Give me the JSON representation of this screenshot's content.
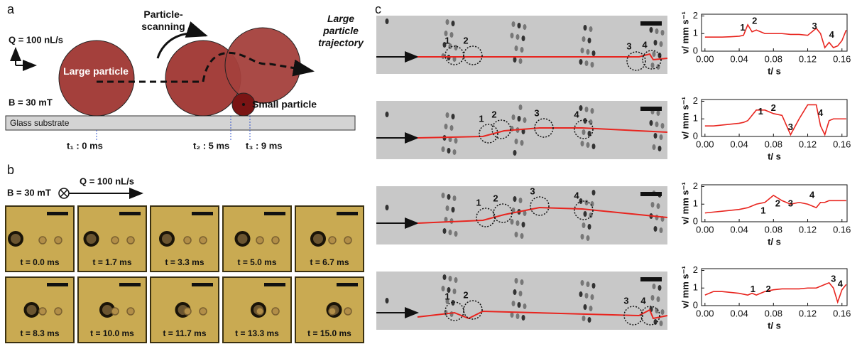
{
  "panel_a": {
    "label": "a",
    "flow": "Q = 100 nL/s",
    "field": "B = 30 mT",
    "large_particle": "Large particle",
    "scanning": "Particle-scanning",
    "trajectory": "Large particle trajectory",
    "small_particle": "Small particle",
    "substrate": "Glass substrate",
    "times": [
      "t₁ : 0 ms",
      "t₂ : 5 ms",
      "t₃ : 9 ms"
    ]
  },
  "panel_b": {
    "label": "b",
    "field": "B = 30 mT",
    "flow": "Q = 100 nL/s",
    "frames": [
      "t = 0.0 ms",
      "t = 1.7 ms",
      "t = 3.3 ms",
      "t = 5.0 ms",
      "t = 6.7 ms",
      "t = 8.3 ms",
      "t = 10.0 ms",
      "t = 11.7 ms",
      "t = 13.3 ms",
      "t = 15.0 ms"
    ]
  },
  "panel_c": {
    "label": "c",
    "images": [
      [
        "1",
        "2",
        "3",
        "4"
      ],
      [
        "1",
        "2",
        "3",
        "4"
      ],
      [
        "1",
        "2",
        "3",
        "4"
      ],
      [
        "1",
        "2",
        "3",
        "4"
      ]
    ]
  },
  "chart_data": [
    {
      "type": "line",
      "xlabel": "t/ s",
      "ylabel": "v/ mm s⁻¹",
      "xlim": [
        -0.004,
        0.166
      ],
      "ylim": [
        0,
        2.1
      ],
      "yticks": [
        0,
        1,
        2
      ],
      "xticks": [
        {
          "value": 0,
          "label": "0.00"
        },
        {
          "value": 0.04,
          "label": "0.04"
        },
        {
          "value": 0.08,
          "label": "0.08"
        },
        {
          "value": 0.12,
          "label": "0.12"
        },
        {
          "value": 0.16,
          "label": "0.16"
        }
      ],
      "x": [
        0,
        0.01,
        0.02,
        0.03,
        0.04,
        0.045,
        0.05,
        0.055,
        0.06,
        0.07,
        0.08,
        0.09,
        0.1,
        0.11,
        0.12,
        0.13,
        0.135,
        0.14,
        0.145,
        0.15,
        0.155,
        0.16,
        0.165
      ],
      "series": [
        {
          "color": "#e8251f",
          "values": [
            0.8,
            0.8,
            0.8,
            0.82,
            0.85,
            0.9,
            1.5,
            1.1,
            1.2,
            1.0,
            1.0,
            1.0,
            0.95,
            0.95,
            0.9,
            1.3,
            1.0,
            0.2,
            0.5,
            0.2,
            0.3,
            0.6,
            1.2
          ]
        }
      ],
      "annotations": [
        {
          "text": "1",
          "x": 0.044,
          "y": 1.3
        },
        {
          "text": "2",
          "x": 0.058,
          "y": 1.7
        },
        {
          "text": "3",
          "x": 0.128,
          "y": 1.4
        },
        {
          "text": "4",
          "x": 0.148,
          "y": 0.9
        }
      ]
    },
    {
      "type": "line",
      "xlabel": "t/ s",
      "ylabel": "v/ mm s⁻¹",
      "xlim": [
        -0.004,
        0.166
      ],
      "ylim": [
        0,
        2.1
      ],
      "yticks": [
        0,
        1,
        2
      ],
      "xticks": [
        {
          "value": 0,
          "label": "0.00"
        },
        {
          "value": 0.04,
          "label": "0.04"
        },
        {
          "value": 0.08,
          "label": "0.08"
        },
        {
          "value": 0.12,
          "label": "0.12"
        },
        {
          "value": 0.16,
          "label": "0.16"
        }
      ],
      "x": [
        0,
        0.01,
        0.02,
        0.03,
        0.04,
        0.045,
        0.05,
        0.055,
        0.06,
        0.07,
        0.08,
        0.09,
        0.1,
        0.11,
        0.12,
        0.13,
        0.135,
        0.14,
        0.145,
        0.15,
        0.155,
        0.16,
        0.165
      ],
      "series": [
        {
          "color": "#e8251f",
          "values": [
            0.6,
            0.6,
            0.65,
            0.7,
            0.75,
            0.8,
            0.9,
            1.2,
            1.5,
            1.5,
            1.3,
            1.2,
            0.1,
            1.0,
            1.8,
            1.8,
            0.6,
            0.1,
            0.9,
            1.0,
            1.0,
            1.0,
            1.0
          ]
        }
      ],
      "annotations": [
        {
          "text": "1",
          "x": 0.065,
          "y": 1.4
        },
        {
          "text": "2",
          "x": 0.08,
          "y": 1.6
        },
        {
          "text": "3",
          "x": 0.1,
          "y": 0.5
        },
        {
          "text": "4",
          "x": 0.135,
          "y": 1.3
        }
      ]
    },
    {
      "type": "line",
      "xlabel": "t/ s",
      "ylabel": "v/ mm s⁻¹",
      "xlim": [
        -0.004,
        0.166
      ],
      "ylim": [
        0,
        2.1
      ],
      "yticks": [
        0,
        1,
        2
      ],
      "xticks": [
        {
          "value": 0,
          "label": "0.00"
        },
        {
          "value": 0.04,
          "label": "0.04"
        },
        {
          "value": 0.08,
          "label": "0.08"
        },
        {
          "value": 0.12,
          "label": "0.12"
        },
        {
          "value": 0.16,
          "label": "0.16"
        }
      ],
      "x": [
        0,
        0.01,
        0.02,
        0.03,
        0.04,
        0.045,
        0.05,
        0.055,
        0.06,
        0.07,
        0.08,
        0.09,
        0.1,
        0.11,
        0.12,
        0.13,
        0.135,
        0.14,
        0.145,
        0.15,
        0.155,
        0.16,
        0.165
      ],
      "series": [
        {
          "color": "#e8251f",
          "values": [
            0.5,
            0.55,
            0.6,
            0.65,
            0.7,
            0.75,
            0.8,
            0.9,
            1.0,
            1.1,
            1.5,
            1.2,
            1.0,
            1.1,
            1.0,
            0.8,
            1.1,
            1.1,
            1.2,
            1.2,
            1.2,
            1.2,
            1.2
          ]
        }
      ],
      "annotations": [
        {
          "text": "1",
          "x": 0.068,
          "y": 0.6
        },
        {
          "text": "2",
          "x": 0.085,
          "y": 1.0
        },
        {
          "text": "3",
          "x": 0.1,
          "y": 1.0
        },
        {
          "text": "4",
          "x": 0.125,
          "y": 1.5
        }
      ]
    },
    {
      "type": "line",
      "xlabel": "t/ s",
      "ylabel": "v/ mm s⁻¹",
      "xlim": [
        -0.004,
        0.166
      ],
      "ylim": [
        0,
        2.1
      ],
      "yticks": [
        0,
        1,
        2
      ],
      "xticks": [
        {
          "value": 0,
          "label": "0.00"
        },
        {
          "value": 0.04,
          "label": "0.04"
        },
        {
          "value": 0.08,
          "label": "0.08"
        },
        {
          "value": 0.12,
          "label": "0.12"
        },
        {
          "value": 0.16,
          "label": "0.16"
        }
      ],
      "x": [
        0,
        0.01,
        0.02,
        0.03,
        0.04,
        0.045,
        0.05,
        0.055,
        0.06,
        0.07,
        0.08,
        0.09,
        0.1,
        0.11,
        0.12,
        0.13,
        0.135,
        0.14,
        0.145,
        0.15,
        0.155,
        0.16,
        0.165
      ],
      "series": [
        {
          "color": "#e8251f",
          "values": [
            0.6,
            0.8,
            0.8,
            0.75,
            0.7,
            0.65,
            0.6,
            0.7,
            0.6,
            0.8,
            0.9,
            0.95,
            0.95,
            0.95,
            1.0,
            1.0,
            1.1,
            1.2,
            1.3,
            1.0,
            0.2,
            0.9,
            1.2
          ]
        }
      ],
      "annotations": [
        {
          "text": "1",
          "x": 0.056,
          "y": 0.9
        },
        {
          "text": "2",
          "x": 0.074,
          "y": 0.9
        },
        {
          "text": "3",
          "x": 0.15,
          "y": 1.5
        },
        {
          "text": "4",
          "x": 0.158,
          "y": 1.2
        }
      ]
    }
  ]
}
